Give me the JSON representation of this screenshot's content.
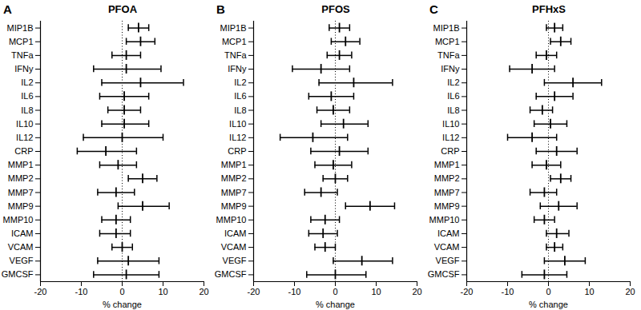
{
  "chart_data": [
    {
      "type": "forest",
      "panel_label": "A",
      "title": "PFOA",
      "xlabel": "% change",
      "categories": [
        "MIP1B",
        "MCP1",
        "TNFa",
        "IFNy",
        "IL2",
        "IL6",
        "IL8",
        "IL10",
        "IL12",
        "CRP",
        "MMP1",
        "MMP2",
        "MMP7",
        "MMP9",
        "MMP10",
        "ICAM",
        "VCAM",
        "VEGF",
        "GMCSF"
      ],
      "values": [
        4,
        4.5,
        1,
        1,
        4.5,
        0.5,
        0.5,
        0.5,
        0,
        -4,
        -1,
        5,
        -1.5,
        5,
        -1.5,
        -1.5,
        0,
        1.5,
        1
      ],
      "ci_low": [
        1.5,
        1,
        -2.5,
        -7,
        -5,
        -5.5,
        -3.5,
        -5,
        -9.5,
        -11,
        -5.5,
        1.5,
        -6,
        -1,
        -5,
        -5.5,
        -2.5,
        -6,
        -7
      ],
      "ci_high": [
        6.5,
        8,
        4.5,
        9.5,
        15,
        6.5,
        4.5,
        6.5,
        10,
        3.5,
        3.5,
        8.5,
        3,
        11.5,
        2,
        2,
        2.5,
        9,
        9
      ],
      "reference_line": 0,
      "color": "#000000",
      "xlim": [
        -20,
        20
      ],
      "xticks": [
        -20,
        -10,
        0,
        10,
        20
      ]
    },
    {
      "type": "forest",
      "panel_label": "B",
      "title": "PFOS",
      "xlabel": "% change",
      "categories": [
        "MIP1B",
        "MCP1",
        "TNFa",
        "IFNy",
        "IL2",
        "IL6",
        "IL8",
        "IL10",
        "IL12",
        "CRP",
        "MMP1",
        "MMP2",
        "MMP7",
        "MMP9",
        "MMP10",
        "ICAM",
        "VCAM",
        "VEGF",
        "GMCSF"
      ],
      "values": [
        1,
        2.5,
        1,
        -3.5,
        4.5,
        -1,
        -0.5,
        2,
        -5.5,
        1,
        -0.5,
        0,
        -3.5,
        8.5,
        -2.5,
        -3,
        -2.5,
        6.5,
        0
      ],
      "ci_low": [
        -1.5,
        -1,
        -2,
        -10.5,
        -4,
        -6.5,
        -4.5,
        -3.5,
        -13.5,
        -6,
        -5,
        -3,
        -7.5,
        2.5,
        -6,
        -6.5,
        -5,
        -0.5,
        -7
      ],
      "ci_high": [
        3.5,
        6,
        4,
        3.5,
        14,
        4.5,
        3.5,
        8,
        3,
        8,
        4,
        3,
        0.5,
        14.5,
        1,
        0.5,
        0,
        14,
        7.5
      ],
      "reference_line": 0,
      "color": "#000000",
      "xlim": [
        -20,
        20
      ],
      "xticks": [
        -20,
        -10,
        0,
        10,
        20
      ]
    },
    {
      "type": "forest",
      "panel_label": "C",
      "title": "PFHxS",
      "xlabel": "% change",
      "categories": [
        "MIP1B",
        "MCP1",
        "TNFa",
        "IFNy",
        "IL2",
        "IL6",
        "IL8",
        "IL10",
        "IL12",
        "CRP",
        "MMP1",
        "MMP2",
        "MMP7",
        "MMP9",
        "MMP10",
        "ICAM",
        "VCAM",
        "VEGF",
        "GMCSF"
      ],
      "values": [
        1.5,
        3,
        -0.5,
        -4,
        6,
        1.5,
        -1.5,
        0.5,
        -4,
        2,
        -0.5,
        3,
        -1,
        2.5,
        -1,
        2,
        1.5,
        4,
        -1
      ],
      "ci_low": [
        -0.5,
        0.5,
        -3,
        -9.5,
        -1,
        -3,
        -4.5,
        -3.5,
        -10,
        -3,
        -4,
        0.5,
        -4.5,
        -2,
        -3.5,
        -0.5,
        -0.5,
        -1,
        -6.5
      ],
      "ci_high": [
        3.5,
        5.5,
        2,
        1.5,
        13,
        6,
        1,
        4.5,
        2,
        7,
        3,
        5.5,
        2,
        7,
        1.5,
        5,
        3.5,
        9,
        4.5
      ],
      "reference_line": 0,
      "color": "#000000",
      "xlim": [
        -20,
        20
      ],
      "xticks": [
        -20,
        -10,
        0,
        10,
        20
      ]
    }
  ]
}
